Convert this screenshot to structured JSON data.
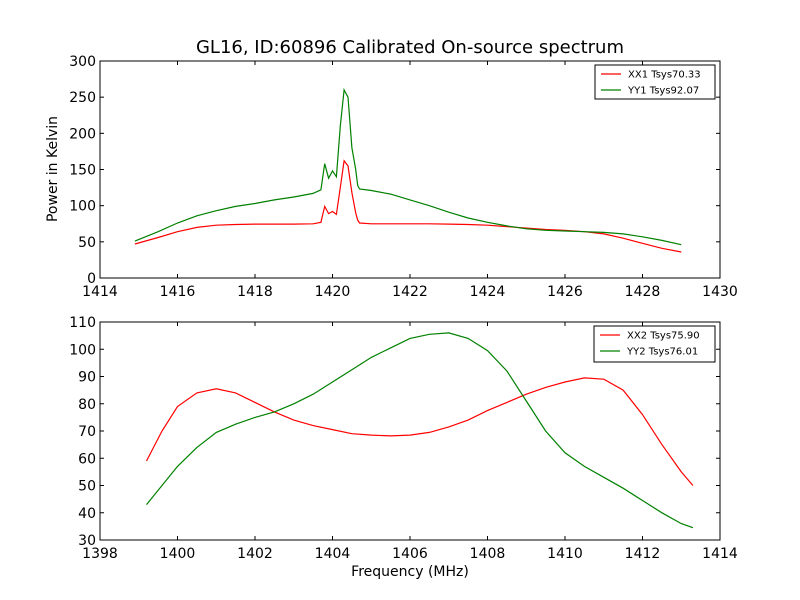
{
  "chart_data": [
    {
      "type": "line",
      "title": "GL16, ID:60896 Calibrated On-source spectrum",
      "xlabel": "",
      "ylabel": "Power in Kelvin",
      "xlim": [
        1414,
        1430
      ],
      "ylim": [
        0,
        300
      ],
      "xticks": [
        1414,
        1416,
        1418,
        1420,
        1422,
        1424,
        1426,
        1428,
        1430
      ],
      "yticks": [
        0,
        50,
        100,
        150,
        200,
        250,
        300
      ],
      "legend": "top-right",
      "grid": false,
      "series": [
        {
          "name": "XX1 Tsys70.33",
          "color": "#ff0000",
          "x": [
            1414.9,
            1415.5,
            1416,
            1416.5,
            1417,
            1417.5,
            1418,
            1418.5,
            1419,
            1419.5,
            1419.7,
            1419.8,
            1419.9,
            1420.0,
            1420.1,
            1420.2,
            1420.3,
            1420.4,
            1420.5,
            1420.6,
            1420.65,
            1420.7,
            1421,
            1421.5,
            1422,
            1422.5,
            1423,
            1423.5,
            1424,
            1424.5,
            1425,
            1425.5,
            1426,
            1426.5,
            1427,
            1427.5,
            1428,
            1428.5,
            1429
          ],
          "y": [
            47,
            56,
            64,
            70,
            73,
            74,
            74.5,
            74.5,
            74.5,
            75,
            77,
            99,
            89,
            92,
            88,
            125,
            162,
            155,
            118,
            90,
            80,
            76,
            75,
            75,
            75,
            75,
            74.5,
            74,
            73,
            71,
            69,
            67,
            66,
            64,
            61,
            55,
            48,
            41,
            36
          ]
        },
        {
          "name": "YY1 Tsys92.07",
          "color": "#008000",
          "x": [
            1414.9,
            1415.5,
            1416,
            1416.5,
            1417,
            1417.5,
            1418,
            1418.5,
            1419,
            1419.5,
            1419.7,
            1419.8,
            1419.9,
            1420.0,
            1420.1,
            1420.2,
            1420.3,
            1420.4,
            1420.5,
            1420.6,
            1420.65,
            1420.7,
            1421,
            1421.5,
            1422,
            1422.5,
            1423,
            1423.5,
            1424,
            1424.5,
            1425,
            1425.5,
            1426,
            1426.5,
            1427,
            1427.5,
            1428,
            1428.5,
            1429
          ],
          "y": [
            51,
            64,
            76,
            86,
            93,
            99,
            103,
            108,
            112,
            117,
            122,
            158,
            138,
            148,
            140,
            210,
            260,
            250,
            180,
            150,
            128,
            123,
            121,
            116,
            108,
            100,
            91,
            83,
            77,
            72,
            68,
            66,
            65,
            64,
            63,
            61,
            57,
            52,
            46
          ]
        }
      ]
    },
    {
      "type": "line",
      "title": "",
      "xlabel": "Frequency (MHz)",
      "ylabel": "",
      "xlim": [
        1398,
        1414
      ],
      "ylim": [
        30,
        110
      ],
      "xticks": [
        1398,
        1400,
        1402,
        1404,
        1406,
        1408,
        1410,
        1412,
        1414
      ],
      "yticks": [
        30,
        40,
        50,
        60,
        70,
        80,
        90,
        100,
        110
      ],
      "legend": "top-right",
      "grid": false,
      "series": [
        {
          "name": "XX2 Tsys75.90",
          "color": "#ff0000",
          "x": [
            1399.2,
            1399.6,
            1400,
            1400.5,
            1401,
            1401.5,
            1402,
            1402.5,
            1403,
            1403.5,
            1404,
            1404.5,
            1405,
            1405.5,
            1406,
            1406.5,
            1407,
            1407.5,
            1408,
            1408.5,
            1409,
            1409.5,
            1410,
            1410.5,
            1411,
            1411.5,
            1412,
            1412.5,
            1413,
            1413.3
          ],
          "y": [
            59,
            70,
            79,
            84,
            85.5,
            84,
            80.5,
            77,
            74,
            72,
            70.5,
            69,
            68.5,
            68.2,
            68.5,
            69.5,
            71.5,
            74,
            77.5,
            80.5,
            83.5,
            86,
            88,
            89.5,
            89,
            85,
            76,
            65,
            55,
            50
          ]
        },
        {
          "name": "YY2 Tsys76.01",
          "color": "#008000",
          "x": [
            1399.2,
            1399.6,
            1400,
            1400.5,
            1401,
            1401.5,
            1402,
            1402.5,
            1403,
            1403.5,
            1404,
            1404.5,
            1405,
            1405.5,
            1406,
            1406.5,
            1407,
            1407.5,
            1408,
            1408.5,
            1409,
            1409.5,
            1410,
            1410.5,
            1411,
            1411.5,
            1412,
            1412.5,
            1413,
            1413.3
          ],
          "y": [
            43,
            50,
            57,
            64,
            69.5,
            72.5,
            75,
            77,
            80,
            83.5,
            88,
            92.5,
            97,
            100.5,
            104,
            105.5,
            106,
            104,
            99.5,
            92,
            81,
            70,
            62,
            57,
            53,
            49,
            44.5,
            40,
            36,
            34.5
          ]
        }
      ]
    }
  ]
}
